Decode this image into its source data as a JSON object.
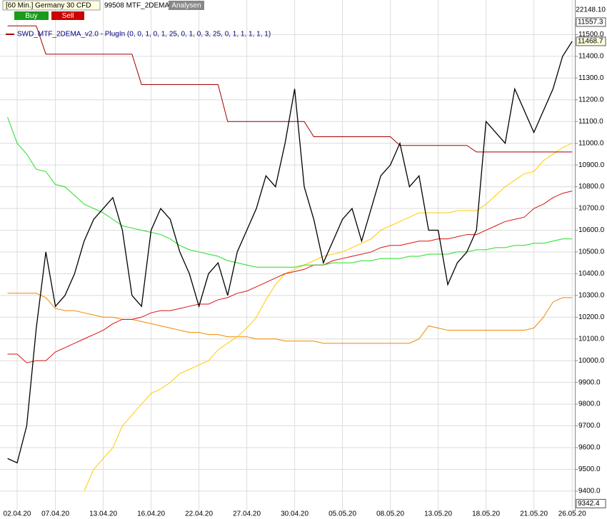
{
  "header": {
    "instrument": "[60 Min.] Germany 30 CFD",
    "account": "99508 MTF_2DEMA",
    "analysis_button": "Analysen",
    "buy_button": "Buy",
    "sell_button": "Sell"
  },
  "chart_data": {
    "type": "line",
    "legend": "SWD_MTF_2DEMA_v2.0 - PlugIn  (0, 0, 1, 0, 1, 25, 0, 1, 0, 3, 25, 0, 1, 1, 1, 1, 1)",
    "legend_color": "#b00000",
    "top_right_label": "22148.10",
    "categories": [
      null,
      "02.04.20",
      null,
      null,
      null,
      "07.04.20",
      null,
      null,
      null,
      null,
      "13.04.20",
      null,
      null,
      null,
      null,
      "16.04.20",
      null,
      null,
      null,
      null,
      "22.04.20",
      null,
      null,
      null,
      null,
      "27.04.20",
      null,
      null,
      null,
      null,
      "30.04.20",
      null,
      null,
      null,
      null,
      "05.05.20",
      null,
      null,
      null,
      null,
      "08.05.20",
      null,
      null,
      null,
      null,
      "13.05.20",
      null,
      null,
      null,
      null,
      "18.05.20",
      null,
      null,
      null,
      null,
      "21.05.20",
      null,
      null,
      null,
      "26.05.20"
    ],
    "series": [
      {
        "color": "#000000",
        "values": [
          9550,
          9530,
          9700,
          10150,
          10500,
          10250,
          10300,
          10400,
          10550,
          10650,
          10700,
          10750,
          10600,
          10300,
          10250,
          10600,
          10700,
          10650,
          10500,
          10400,
          10250,
          10400,
          10450,
          10300,
          10500,
          10600,
          10700,
          10850,
          10800,
          11000,
          11250,
          10800,
          10650,
          10450,
          10550,
          10650,
          10700,
          10550,
          10700,
          10850,
          10900,
          11000,
          10800,
          10850,
          10600,
          10600,
          10350,
          10450,
          10500,
          10600,
          11100,
          11050,
          11000,
          11250,
          11150,
          11050,
          11150,
          11250,
          11400,
          11468.7
        ]
      },
      {
        "color": "#a00000",
        "values": [
          11540,
          11540,
          11540,
          11540,
          11410,
          11410,
          11410,
          11410,
          11410,
          11410,
          11410,
          11410,
          11410,
          11410,
          11270,
          11270,
          11270,
          11270,
          11270,
          11270,
          11270,
          11270,
          11270,
          11100,
          11100,
          11100,
          11100,
          11100,
          11100,
          11100,
          11100,
          11100,
          11030,
          11030,
          11030,
          11030,
          11030,
          11030,
          11030,
          11030,
          11030,
          10990,
          10990,
          10990,
          10990,
          10990,
          10990,
          10990,
          10990,
          10960,
          10960,
          10960,
          10960,
          10960,
          10960,
          10960,
          10960,
          10960,
          10960,
          10960
        ]
      },
      {
        "color": "#22dd22",
        "values": [
          11120,
          11000,
          10950,
          10880,
          10870,
          10810,
          10800,
          10760,
          10720,
          10700,
          10680,
          10650,
          10620,
          10610,
          10600,
          10590,
          10580,
          10560,
          10530,
          10510,
          10500,
          10490,
          10480,
          10460,
          10450,
          10440,
          10430,
          10430,
          10430,
          10430,
          10430,
          10440,
          10440,
          10440,
          10450,
          10450,
          10450,
          10460,
          10460,
          10470,
          10470,
          10470,
          10480,
          10480,
          10490,
          10490,
          10490,
          10500,
          10500,
          10510,
          10510,
          10520,
          10520,
          10530,
          10530,
          10540,
          10540,
          10550,
          10560,
          10560
        ]
      },
      {
        "color": "#dd1111",
        "values": [
          10030,
          10030,
          9990,
          10000,
          10000,
          10040,
          10060,
          10080,
          10100,
          10120,
          10140,
          10170,
          10190,
          10190,
          10200,
          10220,
          10230,
          10230,
          10240,
          10250,
          10260,
          10260,
          10280,
          10290,
          10310,
          10320,
          10340,
          10360,
          10380,
          10400,
          10410,
          10420,
          10440,
          10440,
          10460,
          10470,
          10480,
          10490,
          10500,
          10520,
          10530,
          10530,
          10540,
          10550,
          10550,
          10560,
          10560,
          10570,
          10580,
          10580,
          10600,
          10620,
          10640,
          10650,
          10660,
          10700,
          10720,
          10750,
          10770,
          10780
        ]
      },
      {
        "color": "#ffcc00",
        "values": [
          null,
          null,
          null,
          null,
          null,
          null,
          null,
          null,
          9400,
          9500,
          9550,
          9600,
          9700,
          9750,
          9800,
          9850,
          9870,
          9900,
          9940,
          9960,
          9980,
          10000,
          10050,
          10080,
          10110,
          10150,
          10200,
          10280,
          10350,
          10400,
          10420,
          10440,
          10460,
          10480,
          10490,
          10500,
          10520,
          10540,
          10560,
          10600,
          10620,
          10640,
          10660,
          10680,
          10680,
          10680,
          10680,
          10690,
          10690,
          10690,
          10720,
          10760,
          10800,
          10830,
          10860,
          10870,
          10920,
          10950,
          10980,
          11000
        ]
      },
      {
        "color": "#ee8800",
        "values": [
          10310,
          10310,
          10310,
          10310,
          10290,
          10240,
          10230,
          10230,
          10220,
          10210,
          10200,
          10200,
          10190,
          10190,
          10180,
          10170,
          10160,
          10150,
          10140,
          10130,
          10130,
          10120,
          10120,
          10110,
          10110,
          10110,
          10100,
          10100,
          10100,
          10090,
          10090,
          10090,
          10090,
          10080,
          10080,
          10080,
          10080,
          10080,
          10080,
          10080,
          10080,
          10080,
          10080,
          10100,
          10160,
          10150,
          10140,
          10140,
          10140,
          10140,
          10140,
          10140,
          10140,
          10140,
          10140,
          10150,
          10200,
          10270,
          10290,
          10290
        ]
      }
    ],
    "ylim": [
      9311,
      11659
    ],
    "yticks": [
      {
        "value": 9400,
        "label": "9400.0"
      },
      {
        "value": 9500,
        "label": "9500.0"
      },
      {
        "value": 9600,
        "label": "9600.0"
      },
      {
        "value": 9700,
        "label": "9700.0"
      },
      {
        "value": 9800,
        "label": "9800.0"
      },
      {
        "value": 9900,
        "label": "9900.0"
      },
      {
        "value": 10000,
        "label": "10000.0"
      },
      {
        "value": 10100,
        "label": "10100.0"
      },
      {
        "value": 10200,
        "label": "10200.0"
      },
      {
        "value": 10300,
        "label": "10300.0"
      },
      {
        "value": 10400,
        "label": "10400.0"
      },
      {
        "value": 10500,
        "label": "10500.0"
      },
      {
        "value": 10600,
        "label": "10600.0"
      },
      {
        "value": 10700,
        "label": "10700.0"
      },
      {
        "value": 10800,
        "label": "10800.0"
      },
      {
        "value": 10900,
        "label": "10900.0"
      },
      {
        "value": 11000,
        "label": "11000.0"
      },
      {
        "value": 11100,
        "label": "11100.0"
      },
      {
        "value": 11200,
        "label": "11200.0"
      },
      {
        "value": 11300,
        "label": "11300.0"
      },
      {
        "value": 11400,
        "label": "11400.0"
      },
      {
        "value": 11500,
        "label": "11500.0"
      }
    ],
    "markers": [
      {
        "value": 11557.3,
        "label": "11557.3"
      },
      {
        "value": 11468.7,
        "label": "11468.7"
      },
      {
        "value": 9342.4,
        "label": "9342.4"
      }
    ],
    "grid": true
  }
}
